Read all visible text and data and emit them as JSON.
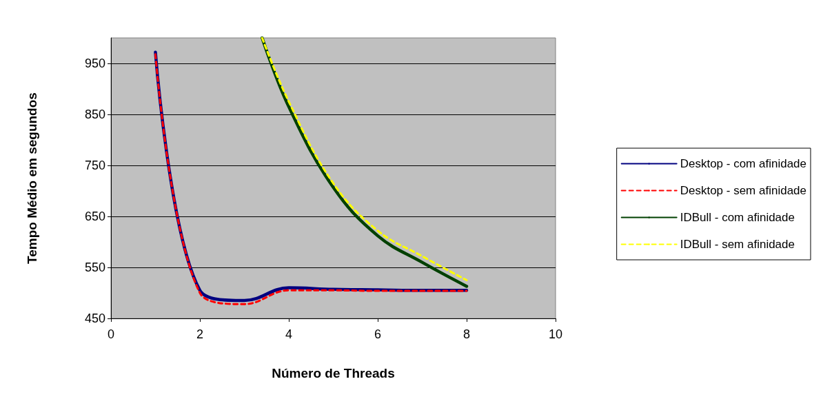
{
  "chart_data": {
    "type": "line",
    "xlabel": "Número de Threads",
    "ylabel": "Tempo Médio em segundos",
    "xlim": [
      0,
      10
    ],
    "xticks": [
      0,
      2,
      4,
      6,
      8,
      10
    ],
    "ylim": [
      450,
      1000
    ],
    "yticks": [
      450,
      550,
      650,
      750,
      850,
      950
    ],
    "grid": "y",
    "legend": "right",
    "marker": "none",
    "series": [
      {
        "name": "Desktop - com afinidade",
        "color": "#000080",
        "line_style": "solid",
        "x": [
          1,
          2,
          3,
          4,
          5,
          6,
          7,
          8
        ],
        "values": [
          972,
          505,
          485,
          510,
          507,
          506,
          505,
          505
        ]
      },
      {
        "name": "Desktop - sem afinidade",
        "color": "#ff0000",
        "line_style": "dashed",
        "x": [
          1,
          2,
          3,
          4,
          5,
          6,
          7,
          8
        ],
        "values": [
          968,
          500,
          478,
          505,
          505,
          504,
          504,
          504
        ]
      },
      {
        "name": "IDBull - com afinidade",
        "color": "#004000",
        "line_style": "solid",
        "x": [
          3.4,
          4,
          5,
          6,
          7,
          8
        ],
        "values": [
          1000,
          865,
          707,
          612,
          560,
          513
        ]
      },
      {
        "name": "IDBull - sem afinidade",
        "color": "#ffff00",
        "line_style": "dashed",
        "x": [
          3.4,
          4,
          5,
          6,
          7,
          8
        ],
        "values": [
          1000,
          875,
          715,
          622,
          572,
          525
        ]
      }
    ]
  }
}
